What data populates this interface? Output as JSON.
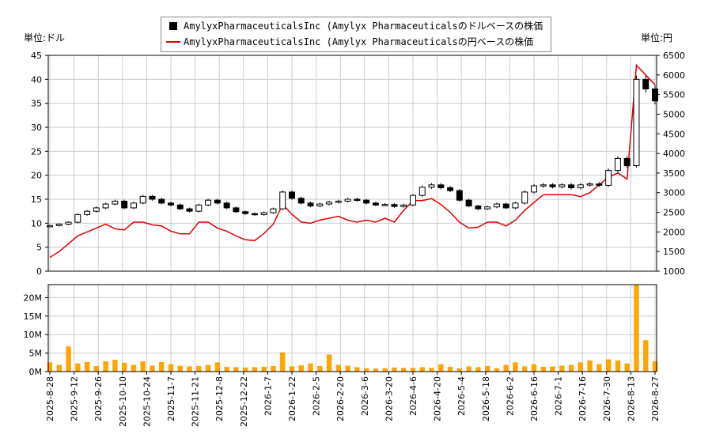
{
  "chart_data": {
    "type": "line",
    "legend": {
      "placement": "top-center",
      "entries": [
        "AmylyxPharmaceuticalsInc (Amylyx Pharmaceuticalsのドルベースの株価",
        "AmylyxPharmaceuticalsInc (Amylyx Pharmaceuticalsの円ベースの株価"
      ]
    },
    "left_unit_label": "単位:ドル",
    "right_unit_label": "単位:円",
    "price_axis_left": {
      "ylim": [
        0,
        45
      ],
      "ticks": [
        "0",
        "5",
        "10",
        "15",
        "20",
        "25",
        "30",
        "35",
        "40",
        "45"
      ]
    },
    "price_axis_right": {
      "ylim": [
        1000,
        6500
      ],
      "ticks": [
        "1000",
        "1500",
        "2000",
        "2500",
        "3000",
        "3500",
        "4000",
        "4500",
        "5000",
        "5500",
        "6000",
        "6500"
      ]
    },
    "volume_axis": {
      "ylim": [
        0,
        23500000
      ],
      "ticks": [
        "0M",
        "5M",
        "10M",
        "15M",
        "20M"
      ]
    },
    "x_ticks": [
      "2025-8-28",
      "2025-9-12",
      "2025-9-26",
      "2025-10-10",
      "2025-10-24",
      "2025-11-7",
      "2025-11-21",
      "2025-12-8",
      "2025-12-22",
      "2026-1-7",
      "2026-1-22",
      "2026-2-5",
      "2026-2-20",
      "2026-3-6",
      "2026-3-20",
      "2026-4-6",
      "2026-4-20",
      "2026-5-4",
      "2026-5-18",
      "2026-6-2",
      "2026-6-16",
      "2026-7-1",
      "2026-7-16",
      "2026-7-30",
      "2026-8-13",
      "2026-8-27"
    ],
    "grid": true,
    "colors": {
      "usd_candles": "#000000",
      "jpy_line": "#e00000",
      "volume_bars": "#ffa500",
      "grid": "#cccccc"
    },
    "series": [
      {
        "name": "AmylyxPharmaceuticalsInc (Amylyx Pharmaceuticalsのドルベースの株価",
        "unit": "USD",
        "values": [
          9.5,
          9.8,
          10.2,
          11.8,
          12.5,
          13.2,
          14.0,
          14.6,
          13.2,
          14.2,
          15.6,
          15.0,
          14.2,
          13.8,
          13.0,
          12.5,
          13.8,
          14.8,
          14.2,
          13.2,
          12.4,
          12.0,
          11.8,
          12.2,
          13.0,
          16.5,
          15.2,
          14.2,
          13.6,
          14.0,
          14.4,
          14.6,
          15.0,
          14.8,
          14.2,
          13.8,
          13.9,
          13.5,
          13.8,
          15.8,
          17.5,
          18.0,
          17.4,
          16.8,
          14.8,
          13.6,
          13.0,
          13.4,
          14.0,
          13.2,
          14.2,
          16.5,
          17.8,
          18.0,
          17.6,
          18.0,
          17.4,
          18.0,
          18.2,
          17.9,
          21.0,
          23.5,
          22.0,
          40.0,
          38.0,
          35.5
        ]
      },
      {
        "name": "AmylyxPharmaceuticalsInc (Amylyx Pharmaceuticalsの円ベースの株価",
        "unit": "JPY",
        "values": [
          1350,
          1500,
          1700,
          1900,
          2000,
          2100,
          2200,
          2080,
          2050,
          2250,
          2250,
          2180,
          2150,
          2020,
          1950,
          1950,
          2250,
          2250,
          2100,
          2020,
          1900,
          1800,
          1780,
          1960,
          2200,
          2700,
          2450,
          2250,
          2220,
          2300,
          2350,
          2400,
          2300,
          2250,
          2300,
          2250,
          2350,
          2250,
          2550,
          2800,
          2800,
          2850,
          2700,
          2500,
          2250,
          2100,
          2120,
          2250,
          2250,
          2150,
          2300,
          2550,
          2750,
          2950,
          2950,
          2950,
          2950,
          2900,
          3000,
          3200,
          3400,
          3500,
          3350,
          6250,
          6000,
          5750
        ]
      }
    ],
    "volume": {
      "unit": "shares",
      "values": [
        2500000,
        1800000,
        6800000,
        2200000,
        2600000,
        1500000,
        2800000,
        3200000,
        2400000,
        1800000,
        2800000,
        1600000,
        2600000,
        2000000,
        1600000,
        1400000,
        1500000,
        1800000,
        2500000,
        1300000,
        1200000,
        1100000,
        1200000,
        1300000,
        1500000,
        5200000,
        1400000,
        1700000,
        2200000,
        1500000,
        4600000,
        1800000,
        1600000,
        1200000,
        900000,
        800000,
        900000,
        1100000,
        1000000,
        1000000,
        1200000,
        1000000,
        2000000,
        1300000,
        900000,
        1400000,
        1200000,
        1500000,
        900000,
        1800000,
        2500000,
        1400000,
        2000000,
        1300000,
        1400000,
        1600000,
        1800000,
        2500000,
        3000000,
        2000000,
        3300000,
        3000000,
        2200000,
        23500000,
        8500000,
        2800000
      ]
    }
  }
}
